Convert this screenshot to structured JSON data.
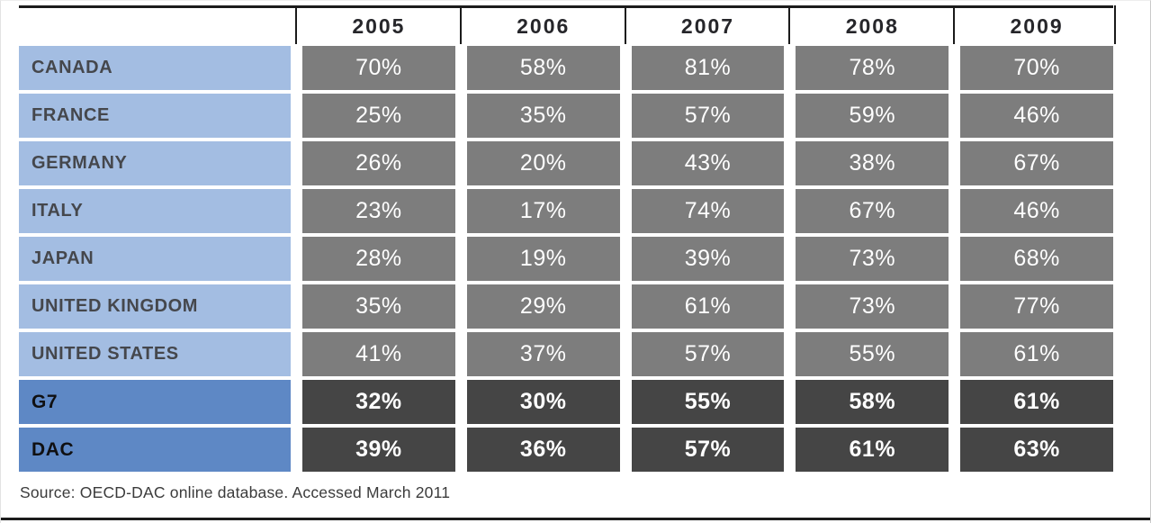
{
  "table": {
    "header": {
      "corner": "",
      "years": [
        "2005",
        "2006",
        "2007",
        "2008",
        "2009"
      ]
    },
    "rows": [
      {
        "label": "CANADA",
        "values": [
          "70%",
          "58%",
          "81%",
          "78%",
          "70%"
        ],
        "emphasis": false
      },
      {
        "label": "FRANCE",
        "values": [
          "25%",
          "35%",
          "57%",
          "59%",
          "46%"
        ],
        "emphasis": false
      },
      {
        "label": "GERMANY",
        "values": [
          "26%",
          "20%",
          "43%",
          "38%",
          "67%"
        ],
        "emphasis": false
      },
      {
        "label": "ITALY",
        "values": [
          "23%",
          "17%",
          "74%",
          "67%",
          "46%"
        ],
        "emphasis": false
      },
      {
        "label": "JAPAN",
        "values": [
          "28%",
          "19%",
          "39%",
          "73%",
          "68%"
        ],
        "emphasis": false
      },
      {
        "label": "UNITED KINGDOM",
        "values": [
          "35%",
          "29%",
          "61%",
          "73%",
          "77%"
        ],
        "emphasis": false
      },
      {
        "label": "UNITED STATES",
        "values": [
          "41%",
          "37%",
          "57%",
          "55%",
          "61%"
        ],
        "emphasis": false
      },
      {
        "label": "G7",
        "values": [
          "32%",
          "30%",
          "55%",
          "58%",
          "61%"
        ],
        "emphasis": true
      },
      {
        "label": "DAC",
        "values": [
          "39%",
          "36%",
          "57%",
          "61%",
          "63%"
        ],
        "emphasis": true
      }
    ],
    "source_note": "Source: OECD-DAC online database. Accessed March 2011"
  },
  "colors": {
    "label_blue_light": "#a3bde2",
    "label_blue_strong": "#5e88c5",
    "cell_gray": "#7d7d7d",
    "cell_gray_dark": "#454545",
    "header_rule_black": "#1b1b1b",
    "label_text": "#45474c",
    "value_text": "#ffffff",
    "source_text": "#3b3b3b"
  },
  "chart_data": {
    "type": "table",
    "title": "",
    "categories": [
      "2005",
      "2006",
      "2007",
      "2008",
      "2009"
    ],
    "unit": "%",
    "series": [
      {
        "name": "Canada",
        "values": [
          70,
          58,
          81,
          78,
          70
        ]
      },
      {
        "name": "France",
        "values": [
          25,
          35,
          57,
          59,
          46
        ]
      },
      {
        "name": "Germany",
        "values": [
          26,
          20,
          43,
          38,
          67
        ]
      },
      {
        "name": "Italy",
        "values": [
          23,
          17,
          74,
          67,
          46
        ]
      },
      {
        "name": "Japan",
        "values": [
          28,
          19,
          39,
          73,
          68
        ]
      },
      {
        "name": "United Kingdom",
        "values": [
          35,
          29,
          61,
          73,
          77
        ]
      },
      {
        "name": "United States",
        "values": [
          41,
          37,
          57,
          55,
          61
        ]
      },
      {
        "name": "G7",
        "values": [
          32,
          30,
          55,
          58,
          61
        ]
      },
      {
        "name": "DAC",
        "values": [
          39,
          36,
          57,
          61,
          63
        ]
      }
    ],
    "source": "Source: OECD-DAC online database. Accessed March 2011"
  }
}
